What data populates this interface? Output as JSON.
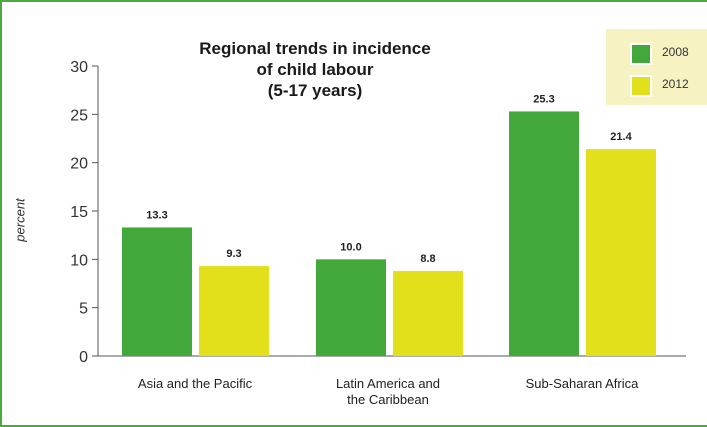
{
  "chart_data": {
    "type": "bar",
    "title_lines": [
      "Regional trends in incidence",
      "of child labour",
      "(5-17 years)"
    ],
    "ylabel": "percent",
    "xlabel": "",
    "ylim": [
      0,
      30
    ],
    "yticks": [
      0,
      5,
      10,
      15,
      20,
      25,
      30
    ],
    "categories": [
      "Asia and the Pacific",
      "Latin America and the Caribbean",
      "Sub-Saharan Africa"
    ],
    "category_label_lines": [
      [
        "Asia and the Pacific"
      ],
      [
        "Latin America and",
        "the Caribbean"
      ],
      [
        "Sub-Saharan Africa"
      ]
    ],
    "series": [
      {
        "name": "2008",
        "color": "#43a83b",
        "values": [
          13.3,
          10.0,
          25.3
        ],
        "labels": [
          "13.3",
          "10.0",
          "25.3"
        ]
      },
      {
        "name": "2012",
        "color": "#e2e01b",
        "values": [
          9.3,
          8.8,
          21.4
        ],
        "labels": [
          "9.3",
          "8.8",
          "21.4"
        ]
      }
    ],
    "legend_position": "top-right",
    "grid": false
  }
}
